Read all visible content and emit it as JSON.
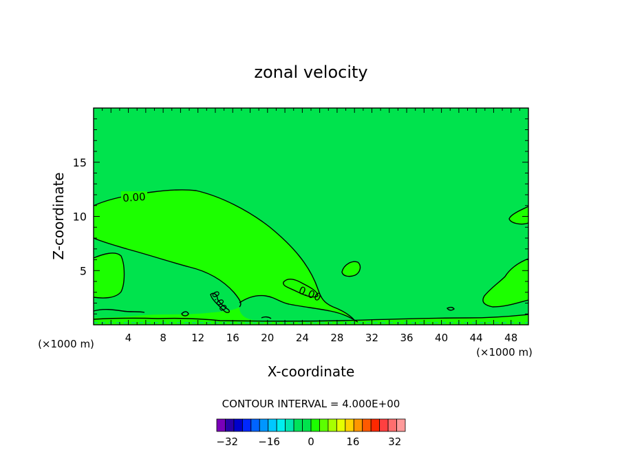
{
  "chart_data": {
    "type": "contour",
    "title": "zonal velocity",
    "xlabel": "X-coordinate",
    "ylabel": "Z-coordinate",
    "x_unit_left": "(×1000 m)",
    "x_unit_right": "(×1000 m)",
    "xlim": [
      0,
      50
    ],
    "ylim": [
      0,
      20
    ],
    "x_ticks": [
      4,
      8,
      12,
      16,
      20,
      24,
      28,
      32,
      36,
      40,
      44,
      48
    ],
    "y_ticks": [
      5,
      10,
      15
    ],
    "contour_labels": [
      "0.00",
      "0.00",
      "0.00"
    ],
    "background_color": "#00e34d",
    "positive_region_color": "#1cff00",
    "contour_interval_text": "CONTOUR INTERVAL = 4.000E+00",
    "colorbar": {
      "min": -36,
      "max": 36,
      "step": 4,
      "tick_values": [
        -32,
        -16,
        0,
        16,
        32
      ],
      "tick_labels": [
        "−32",
        "−16",
        "0",
        "16",
        "32"
      ],
      "colors": [
        "#7a00b8",
        "#2a00a8",
        "#0000cc",
        "#0028ff",
        "#0064ff",
        "#0096ff",
        "#00c8ff",
        "#00eef0",
        "#00e6b0",
        "#00e35a",
        "#00e34d",
        "#1cff00",
        "#5cff00",
        "#a8ff00",
        "#e6ff00",
        "#ffd200",
        "#ff9600",
        "#ff5a00",
        "#ff2800",
        "#ff4040",
        "#ff6e6e",
        "#ff9a9a"
      ]
    }
  }
}
